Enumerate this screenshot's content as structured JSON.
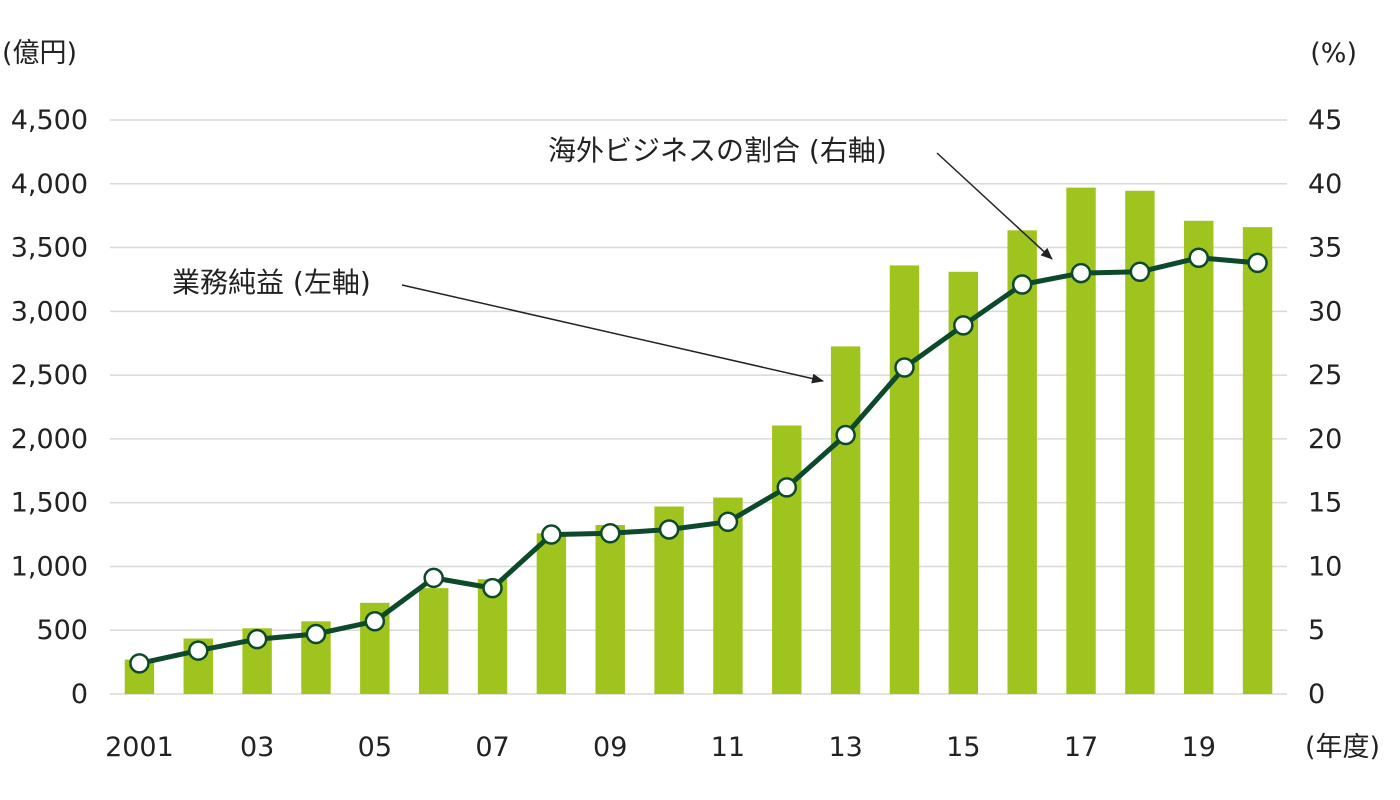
{
  "chart_data": {
    "type": "bar",
    "categories": [
      "2001",
      "2002",
      "2003",
      "2004",
      "2005",
      "2006",
      "2007",
      "2008",
      "2009",
      "2010",
      "2011",
      "2012",
      "2013",
      "2014",
      "2015",
      "2016",
      "2017",
      "2018",
      "2019",
      "2020"
    ],
    "x_tick_labels": [
      {
        "category": "2001",
        "label": "2001"
      },
      {
        "category": "2003",
        "label": "03"
      },
      {
        "category": "2005",
        "label": "05"
      },
      {
        "category": "2007",
        "label": "07"
      },
      {
        "category": "2009",
        "label": "09"
      },
      {
        "category": "2011",
        "label": "11"
      },
      {
        "category": "2013",
        "label": "13"
      },
      {
        "category": "2015",
        "label": "15"
      },
      {
        "category": "2017",
        "label": "17"
      },
      {
        "category": "2019",
        "label": "19"
      }
    ],
    "series": [
      {
        "name": "業務純益 (左軸)",
        "type": "bar",
        "axis": "left",
        "color": "#a0c41e",
        "values": [
          270,
          435,
          515,
          570,
          715,
          830,
          900,
          1260,
          1325,
          1470,
          1540,
          2105,
          2725,
          3360,
          3310,
          3635,
          3970,
          3945,
          3710,
          3660
        ]
      },
      {
        "name": "海外ビジネスの割合 (右軸)",
        "type": "line",
        "axis": "right",
        "color": "#0d4a2c",
        "values": [
          2.4,
          3.4,
          4.3,
          4.7,
          5.7,
          9.1,
          8.3,
          12.5,
          12.6,
          12.9,
          13.5,
          16.2,
          20.3,
          25.6,
          28.9,
          32.1,
          33.0,
          33.1,
          34.2,
          33.8
        ]
      }
    ],
    "y_left": {
      "unit_label": "(億円)",
      "min": 0,
      "max": 4500,
      "ticks": [
        {
          "value": 0,
          "label": "0"
        },
        {
          "value": 500,
          "label": "500"
        },
        {
          "value": 1000,
          "label": "1,000"
        },
        {
          "value": 1500,
          "label": "1,500"
        },
        {
          "value": 2000,
          "label": "2,000"
        },
        {
          "value": 2500,
          "label": "2,500"
        },
        {
          "value": 3000,
          "label": "3,000"
        },
        {
          "value": 3500,
          "label": "3,500"
        },
        {
          "value": 4000,
          "label": "4,000"
        },
        {
          "value": 4500,
          "label": "4,500"
        }
      ]
    },
    "y_right": {
      "unit_label": "(%)",
      "min": 0,
      "max": 45,
      "ticks": [
        {
          "value": 0,
          "label": "0"
        },
        {
          "value": 5,
          "label": "5"
        },
        {
          "value": 10,
          "label": "10"
        },
        {
          "value": 15,
          "label": "15"
        },
        {
          "value": 20,
          "label": "20"
        },
        {
          "value": 25,
          "label": "25"
        },
        {
          "value": 30,
          "label": "30"
        },
        {
          "value": 35,
          "label": "35"
        },
        {
          "value": 40,
          "label": "40"
        },
        {
          "value": 45,
          "label": "45"
        }
      ]
    },
    "x_unit_label": "(年度)",
    "grid": true,
    "annotations": [
      {
        "text": "業務純益 (左軸)",
        "points_to_category": "2013",
        "series": "bar"
      },
      {
        "text": "海外ビジネスの割合 (右軸)",
        "points_to_category": "2017",
        "series": "line"
      }
    ]
  }
}
